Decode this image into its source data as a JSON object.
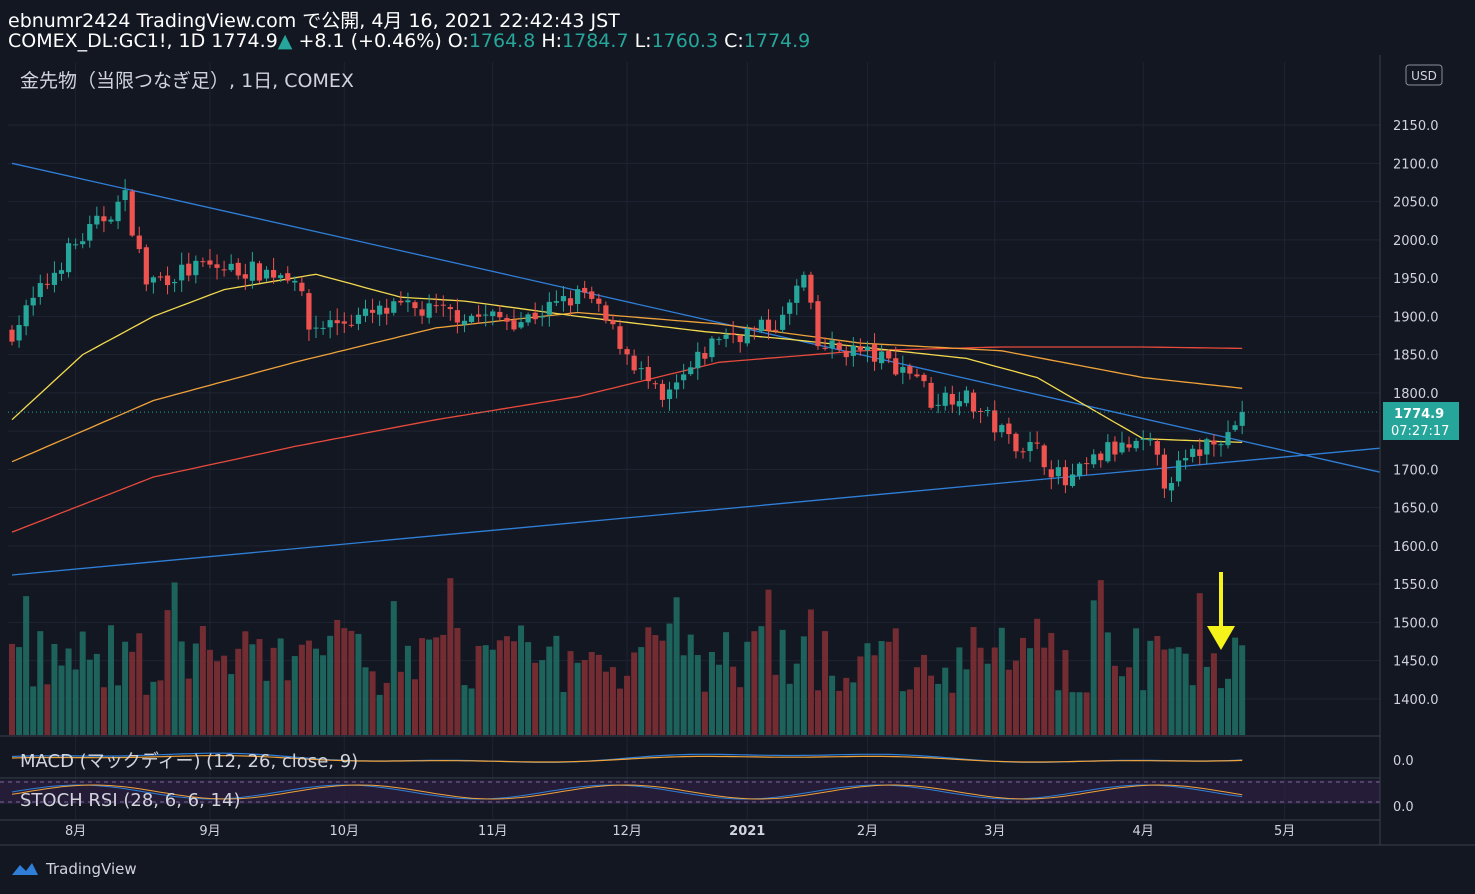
{
  "header": {
    "publisher": "ebnumr2424 TradingView.com で公開, 4月 16, 2021 22:42:43 JST",
    "symbol": "COMEX_DL:GC1!, 1D",
    "last": "1774.9",
    "change": "+8.1 (+0.46%)",
    "open_label": "O:",
    "open": "1764.8",
    "high_label": "H:",
    "high": "1784.7",
    "low_label": "L:",
    "low": "1760.3",
    "close_label": "C:",
    "close": "1774.9"
  },
  "chart_title": "金先物（当限つなぎ足）, 1日, COMEX",
  "currency_badge": "USD",
  "price_label": "1774.9",
  "countdown_label": "07:27:17",
  "macd_label": "MACD (マックディー) (12, 26, close, 9)",
  "stoch_label": "STOCH RSI (28, 6, 6, 14)",
  "macd_tick": "0.0",
  "stoch_tick": "0.0",
  "brand": "TradingView",
  "colors": {
    "up": "#26a69a",
    "down": "#ef5350",
    "ma_short": "#f2d94e",
    "ma_mid": "#f0a23a",
    "ma_long": "#e84a3c",
    "trend": "#2f7fd8",
    "arrow": "#f5f31a",
    "bg": "#131722"
  },
  "chart_data": {
    "type": "candlestick",
    "title": "金先物（当限つなぎ足）, 1日, COMEX",
    "y_ticks": [
      2150,
      2100,
      2050,
      2000,
      1950,
      1900,
      1850,
      1800,
      1750,
      1700,
      1650,
      1600,
      1550,
      1500,
      1450,
      1400
    ],
    "ylim": [
      1368,
      2238
    ],
    "x_ticks": [
      "8月",
      "9月",
      "10月",
      "11月",
      "12月",
      "2021",
      "2月",
      "3月",
      "4月",
      "5月"
    ],
    "x_tick_index": [
      9,
      28,
      47,
      68,
      87,
      104,
      121,
      139,
      160,
      180
    ],
    "n_bars": 175,
    "waypoints": [
      [
        0,
        1880
      ],
      [
        8,
        1985
      ],
      [
        16,
        2055
      ],
      [
        19,
        1945
      ],
      [
        27,
        1965
      ],
      [
        40,
        1955
      ],
      [
        42,
        1885
      ],
      [
        55,
        1910
      ],
      [
        72,
        1895
      ],
      [
        81,
        1930
      ],
      [
        83,
        1905
      ],
      [
        85,
        1880
      ],
      [
        92,
        1785
      ],
      [
        100,
        1875
      ],
      [
        105,
        1880
      ],
      [
        109,
        1895
      ],
      [
        111,
        1935
      ],
      [
        112,
        1950
      ],
      [
        114,
        1860
      ],
      [
        120,
        1855
      ],
      [
        128,
        1825
      ],
      [
        130,
        1790
      ],
      [
        134,
        1800
      ],
      [
        137,
        1775
      ],
      [
        141,
        1740
      ],
      [
        145,
        1725
      ],
      [
        149,
        1680
      ],
      [
        155,
        1725
      ],
      [
        161,
        1730
      ],
      [
        163,
        1685
      ],
      [
        168,
        1725
      ],
      [
        170,
        1745
      ],
      [
        172,
        1745
      ],
      [
        174,
        1775
      ]
    ],
    "ma_short_y": [
      [
        0,
        1765
      ],
      [
        10,
        1850
      ],
      [
        20,
        1900
      ],
      [
        30,
        1935
      ],
      [
        43,
        1955
      ],
      [
        55,
        1925
      ],
      [
        64,
        1920
      ],
      [
        80,
        1900
      ],
      [
        98,
        1880
      ],
      [
        110,
        1870
      ],
      [
        125,
        1855
      ],
      [
        135,
        1845
      ],
      [
        145,
        1820
      ],
      [
        160,
        1740
      ],
      [
        175,
        1735
      ]
    ],
    "ma_mid_y": [
      [
        0,
        1710
      ],
      [
        20,
        1790
      ],
      [
        40,
        1840
      ],
      [
        60,
        1885
      ],
      [
        80,
        1905
      ],
      [
        100,
        1890
      ],
      [
        120,
        1865
      ],
      [
        140,
        1855
      ],
      [
        160,
        1820
      ],
      [
        175,
        1805
      ]
    ],
    "ma_long_y": [
      [
        0,
        1618
      ],
      [
        20,
        1690
      ],
      [
        40,
        1730
      ],
      [
        60,
        1765
      ],
      [
        80,
        1795
      ],
      [
        100,
        1840
      ],
      [
        120,
        1855
      ],
      [
        140,
        1860
      ],
      [
        160,
        1860
      ],
      [
        175,
        1858
      ]
    ],
    "trend_down": [
      [
        0,
        2100
      ],
      [
        65,
        1965
      ],
      [
        175,
        1735
      ]
    ],
    "trend_up": [
      [
        0,
        1562
      ],
      [
        155,
        1695
      ],
      [
        175,
        1712
      ]
    ],
    "last_price": 1774.9
  }
}
